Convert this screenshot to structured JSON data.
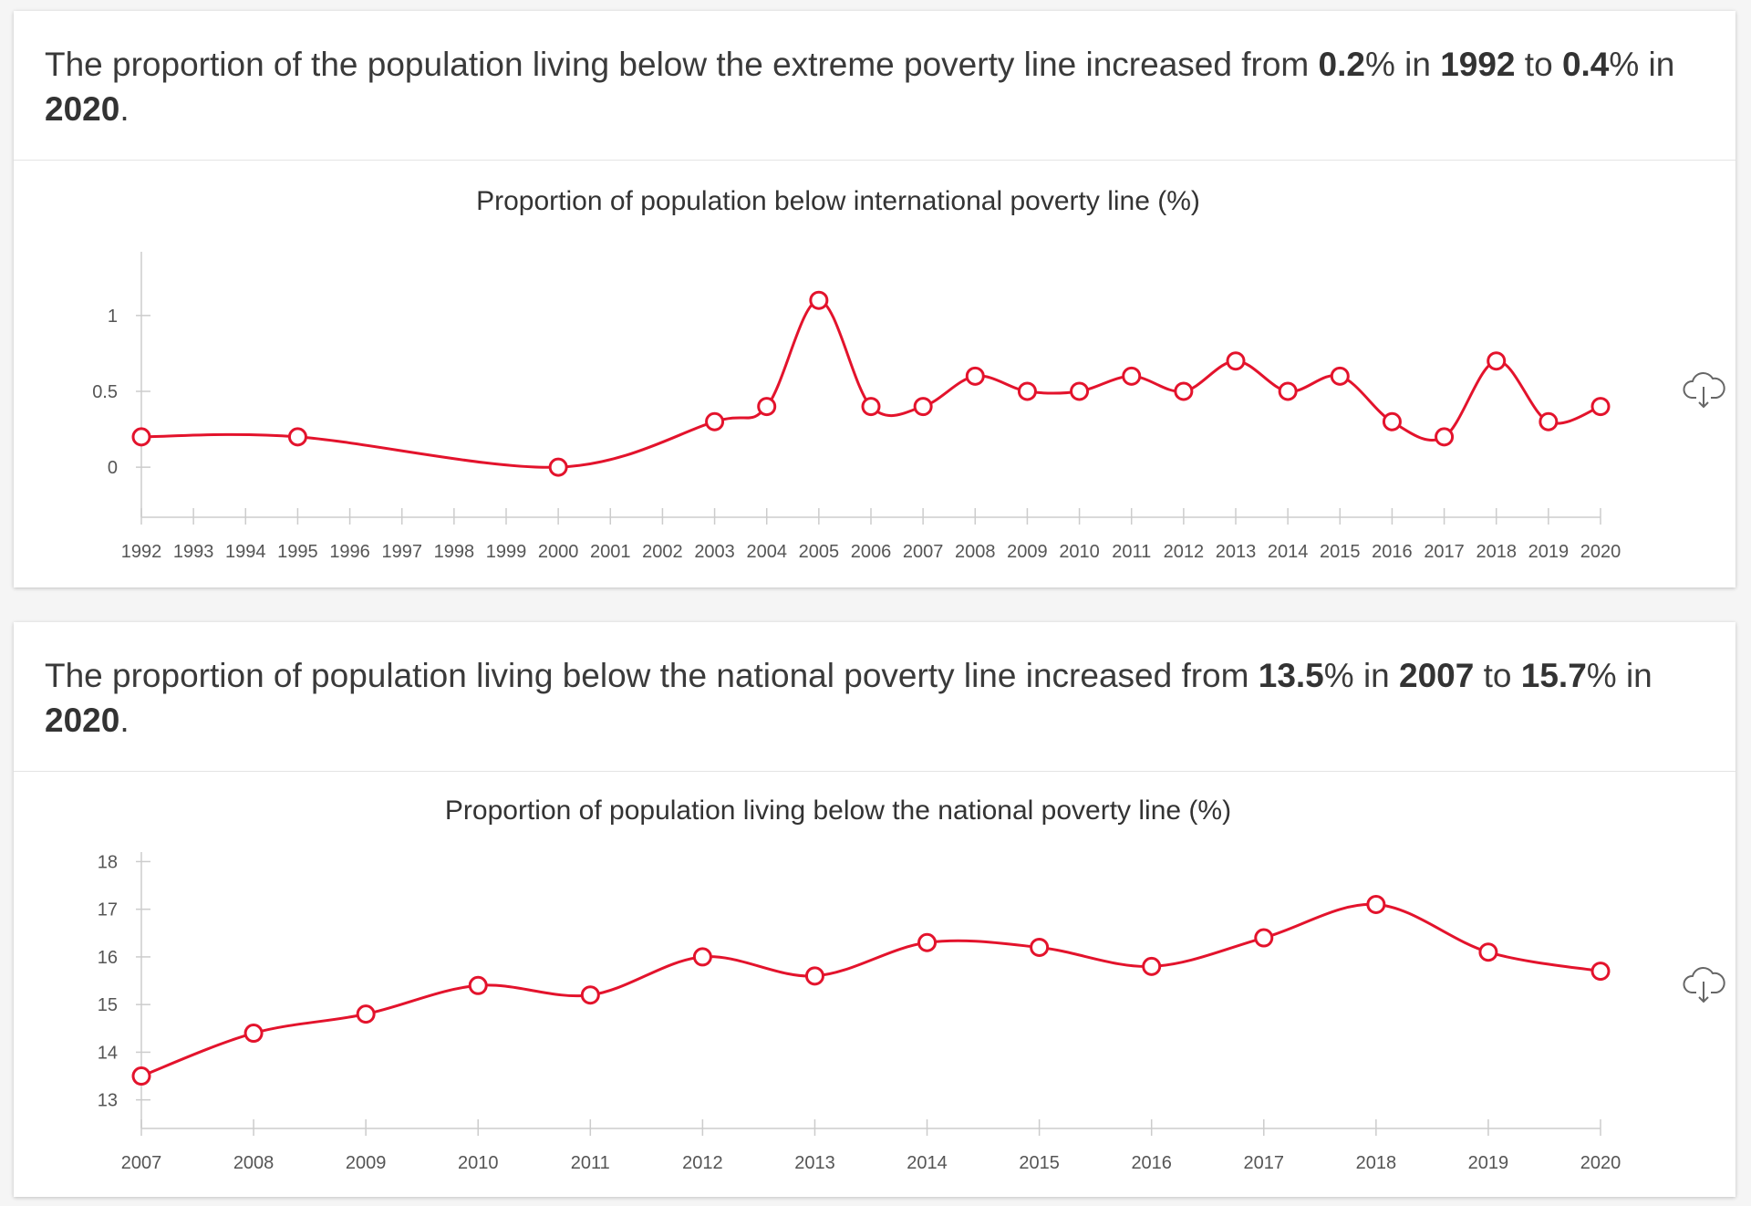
{
  "cards": [
    {
      "headline": {
        "t1": "The proportion of the population living below the extreme poverty line increased from ",
        "b1": "0.2",
        "t2": "% in ",
        "b2": "1992",
        "t3": " to ",
        "b3": "0.4",
        "t4": "% in ",
        "b4": "2020",
        "t5": "."
      },
      "download_icon": "cloud-download-icon"
    },
    {
      "headline": {
        "t1": "The proportion of population living below the national poverty line increased from ",
        "b1": "13.5",
        "t2": "% in ",
        "b2": "2007",
        "t3": " to ",
        "b3": "15.7",
        "t4": "% in ",
        "b4": "2020",
        "t5": "."
      },
      "download_icon": "cloud-download-icon"
    }
  ],
  "colors": {
    "series": "#e3132c",
    "axis": "#d9d9d9"
  },
  "chart_data": [
    {
      "type": "line",
      "title": "Proportion of population below international poverty line (%)",
      "xlabel": "",
      "ylabel": "",
      "categories": [
        "1992",
        "1993",
        "1994",
        "1995",
        "1996",
        "1997",
        "1998",
        "1999",
        "2000",
        "2001",
        "2002",
        "2003",
        "2004",
        "2005",
        "2006",
        "2007",
        "2008",
        "2009",
        "2010",
        "2011",
        "2012",
        "2013",
        "2014",
        "2015",
        "2016",
        "2017",
        "2018",
        "2019",
        "2020"
      ],
      "ylim": [
        -0.33,
        1.42
      ],
      "yticks": [
        0,
        0.5,
        1
      ],
      "ytick_labels": [
        "0",
        "0.5",
        "1"
      ],
      "series": [
        {
          "points": [
            {
              "x": "1992",
              "y": 0.2
            },
            {
              "x": "1995",
              "y": 0.2
            },
            {
              "x": "2000",
              "y": 0.0
            },
            {
              "x": "2003",
              "y": 0.3
            },
            {
              "x": "2004",
              "y": 0.4
            },
            {
              "x": "2005",
              "y": 1.1
            },
            {
              "x": "2006",
              "y": 0.4
            },
            {
              "x": "2007",
              "y": 0.4
            },
            {
              "x": "2008",
              "y": 0.6
            },
            {
              "x": "2009",
              "y": 0.5
            },
            {
              "x": "2010",
              "y": 0.5
            },
            {
              "x": "2011",
              "y": 0.6
            },
            {
              "x": "2012",
              "y": 0.5
            },
            {
              "x": "2013",
              "y": 0.7
            },
            {
              "x": "2014",
              "y": 0.5
            },
            {
              "x": "2015",
              "y": 0.6
            },
            {
              "x": "2016",
              "y": 0.3
            },
            {
              "x": "2017",
              "y": 0.2
            },
            {
              "x": "2018",
              "y": 0.7
            },
            {
              "x": "2019",
              "y": 0.3
            },
            {
              "x": "2020",
              "y": 0.4
            }
          ]
        }
      ],
      "grid": false,
      "legend": "none"
    },
    {
      "type": "line",
      "title": "Proportion of population living below the national poverty line (%)",
      "xlabel": "",
      "ylabel": "",
      "categories": [
        "2007",
        "2008",
        "2009",
        "2010",
        "2011",
        "2012",
        "2013",
        "2014",
        "2015",
        "2016",
        "2017",
        "2018",
        "2019",
        "2020"
      ],
      "ylim": [
        12.4,
        18.2
      ],
      "yticks": [
        13,
        14,
        15,
        16,
        17,
        18
      ],
      "ytick_labels": [
        "13",
        "14",
        "15",
        "16",
        "17",
        "18"
      ],
      "series": [
        {
          "points": [
            {
              "x": "2007",
              "y": 13.5
            },
            {
              "x": "2008",
              "y": 14.4
            },
            {
              "x": "2009",
              "y": 14.8
            },
            {
              "x": "2010",
              "y": 15.4
            },
            {
              "x": "2011",
              "y": 15.2
            },
            {
              "x": "2012",
              "y": 16.0
            },
            {
              "x": "2013",
              "y": 15.6
            },
            {
              "x": "2014",
              "y": 16.3
            },
            {
              "x": "2015",
              "y": 16.2
            },
            {
              "x": "2016",
              "y": 15.8
            },
            {
              "x": "2017",
              "y": 16.4
            },
            {
              "x": "2018",
              "y": 17.1
            },
            {
              "x": "2019",
              "y": 16.1
            },
            {
              "x": "2020",
              "y": 15.7
            }
          ]
        }
      ],
      "grid": false,
      "legend": "none"
    }
  ]
}
